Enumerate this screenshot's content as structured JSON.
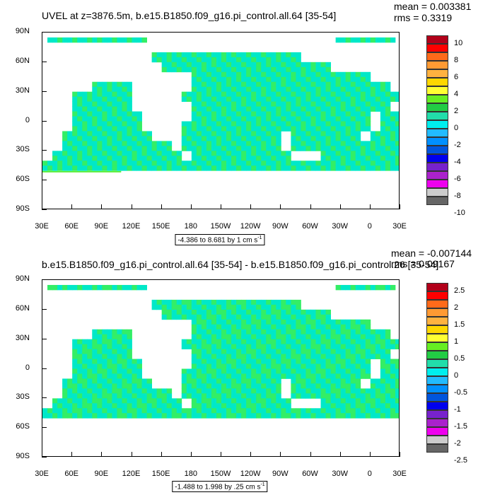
{
  "panels": [
    {
      "title": "UVEL at z=3876.5m, b.e15.B1850.f09_g16.pi_control.all.64 [35-54]",
      "mean": "mean = 0.003381",
      "rms": "rms = 0.3319",
      "range_label": "-4.386 to 8.681 by 1 cm s",
      "range_exp": "-1",
      "colorbar_labels": [
        "10",
        "8",
        "6",
        "4",
        "2",
        "0",
        "-2",
        "-4",
        "-6",
        "-8",
        "-10"
      ]
    },
    {
      "title": "b.e15.B1850.f09_g16.pi_control.all.64 [35-54] - b.e15.B1850.f09_g16.pi_control.26 [35-54]",
      "mean": "mean = -0.007144",
      "rms": "rms = 0.09167",
      "range_label": "-1.488 to 1.998 by .25 cm s",
      "range_exp": "-1",
      "colorbar_labels": [
        "2.5",
        "2",
        "1.5",
        "1",
        "0.5",
        "0",
        "-0.5",
        "-1",
        "-1.5",
        "-2",
        "-2.5"
      ]
    }
  ],
  "axes": {
    "lat_labels": [
      "90N",
      "60N",
      "30N",
      "0",
      "30S",
      "60S",
      "90S"
    ],
    "lon_labels": [
      "30E",
      "60E",
      "90E",
      "120E",
      "150E",
      "180",
      "150W",
      "120W",
      "90W",
      "60W",
      "30W",
      "0",
      "30E"
    ]
  },
  "colors": {
    "palette": [
      "#b2001a",
      "#ff0000",
      "#ff6a1a",
      "#ff9a33",
      "#ffb240",
      "#ffd700",
      "#ffff33",
      "#66ee22",
      "#22cc44",
      "#22ddaa",
      "#00eeee",
      "#22bbff",
      "#0090ff",
      "#0055dd",
      "#0000ee",
      "#7722cc",
      "#aa22cc",
      "#ee00ee",
      "#cccccc",
      "#666666"
    ],
    "ocean_main": "#00e8c8",
    "ocean_alt": "#33ee66",
    "band": "#55ee33"
  },
  "chart_data": [
    {
      "type": "heatmap",
      "title": "UVEL at z=3876.5m, b.e15.B1850.f09_g16.pi_control.all.64 [35-54]",
      "xlabel": "",
      "ylabel": "",
      "x_ticks": [
        "30E",
        "60E",
        "90E",
        "120E",
        "150E",
        "180",
        "150W",
        "120W",
        "90W",
        "60W",
        "30W",
        "0",
        "30E"
      ],
      "y_ticks": [
        "90N",
        "60N",
        "30N",
        "0",
        "30S",
        "60S",
        "90S"
      ],
      "contour_levels": [
        -10,
        -9,
        -8,
        -7,
        -6,
        -5,
        -4,
        -3,
        -2,
        -1,
        0,
        1,
        2,
        3,
        4,
        5,
        6,
        7,
        8,
        9,
        10
      ],
      "min": -4.386,
      "max": 8.681,
      "interval": 1,
      "units": "cm s-1",
      "mean": 0.003381,
      "rms": 0.3319
    },
    {
      "type": "heatmap",
      "title": "b.e15.B1850.f09_g16.pi_control.all.64 [35-54] - b.e15.B1850.f09_g16.pi_control.26 [35-54]",
      "xlabel": "",
      "ylabel": "",
      "x_ticks": [
        "30E",
        "60E",
        "90E",
        "120E",
        "150E",
        "180",
        "150W",
        "120W",
        "90W",
        "60W",
        "30W",
        "0",
        "30E"
      ],
      "y_ticks": [
        "90N",
        "60N",
        "30N",
        "0",
        "30S",
        "60S",
        "90S"
      ],
      "contour_levels": [
        -2.5,
        -2.25,
        -2,
        -1.75,
        -1.5,
        -1.25,
        -1,
        -0.75,
        -0.5,
        -0.25,
        0,
        0.25,
        0.5,
        0.75,
        1,
        1.25,
        1.5,
        1.75,
        2,
        2.25,
        2.5
      ],
      "min": -1.488,
      "max": 1.998,
      "interval": 0.25,
      "units": "cm s-1",
      "mean": -0.007144,
      "rms": 0.09167
    }
  ]
}
